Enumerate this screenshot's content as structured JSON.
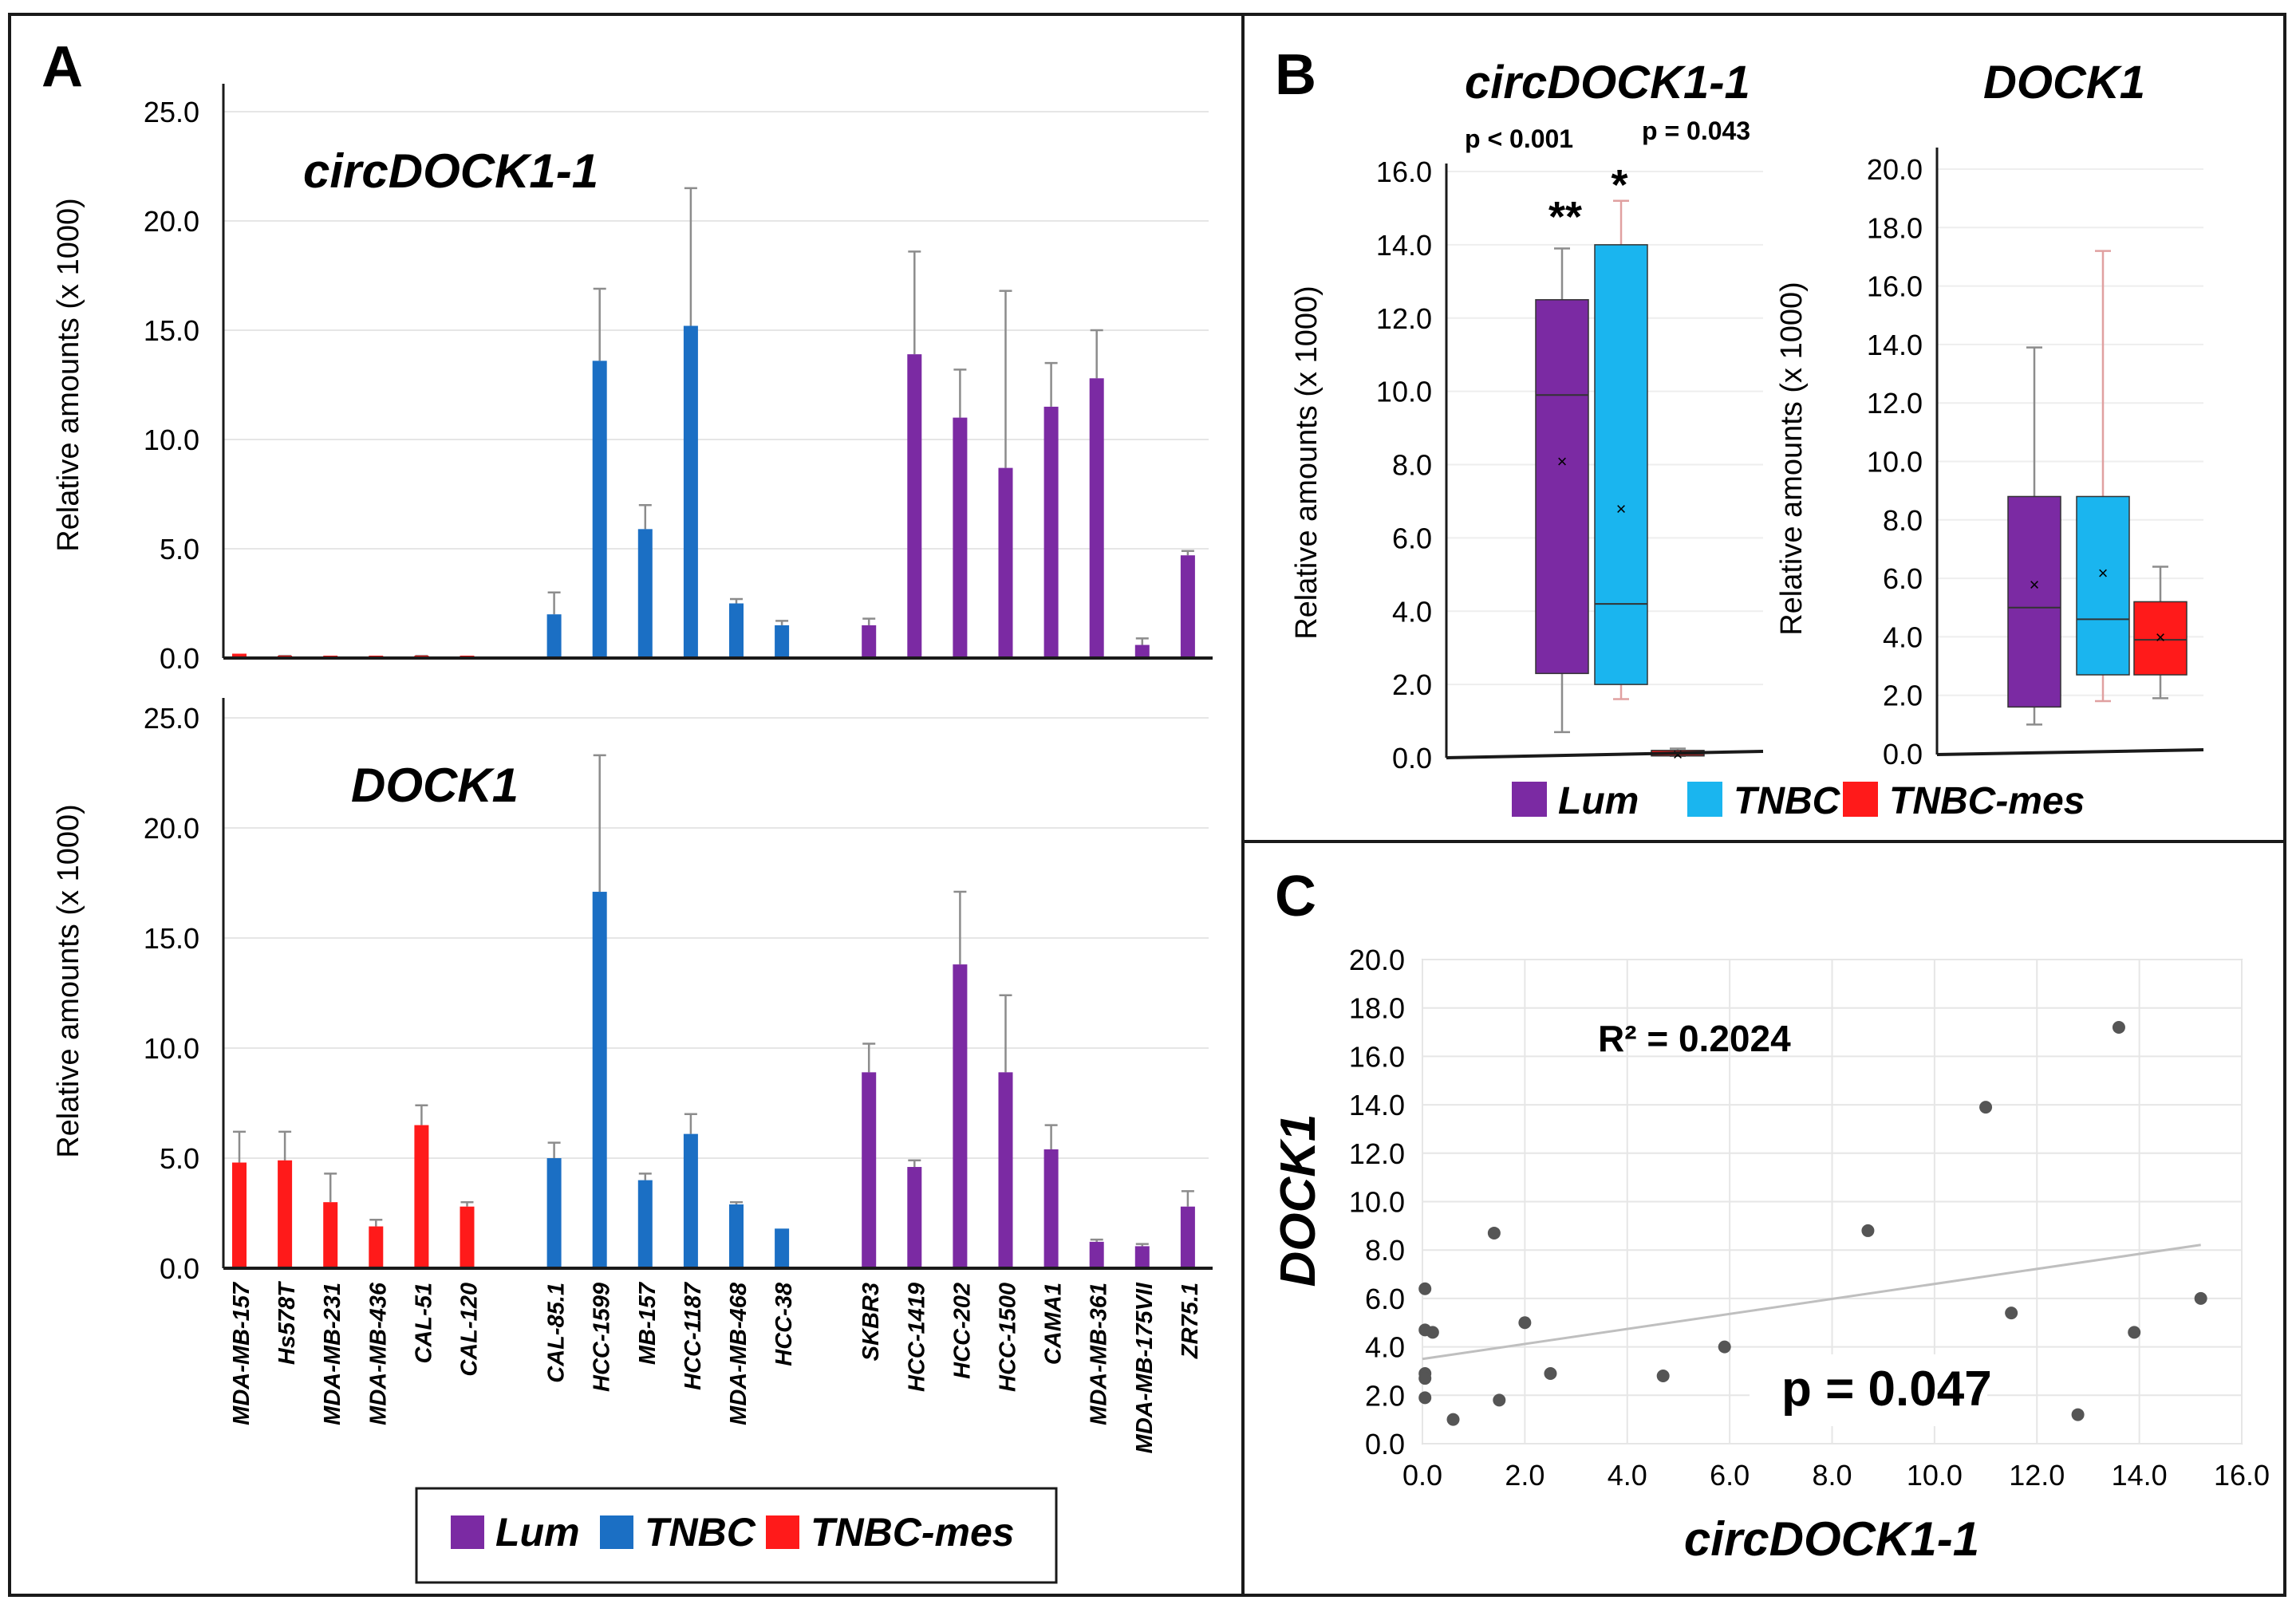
{
  "panel_labels": {
    "a": "A",
    "b": "B",
    "c": "C"
  },
  "colors": {
    "lum": "#7b2aa3",
    "tnbc_a": "#1b6fc4",
    "tnbc_b": "#1ab5ef",
    "mes": "#ff1a1a",
    "err": "#8c8c8c",
    "grid": "#e6e6e6",
    "axis": "#1a1a1a"
  },
  "chart_data": [
    {
      "id": "A_top",
      "type": "bar",
      "title": "circDOCK1-1",
      "ylabel": "Relative amounts (x 1000)",
      "ylim": [
        0,
        25
      ],
      "yticks": [
        "0.0",
        "5.0",
        "10.0",
        "15.0",
        "20.0",
        "25.0"
      ],
      "categories": [
        "MDA-MB-157",
        "Hs578T",
        "MDA-MB-231",
        "MDA-MB-436",
        "CAL-51",
        "CAL-120",
        "CAL-85.1",
        "HCC-1599",
        "MB-157",
        "HCC-1187",
        "MDA-MB-468",
        "HCC-38",
        "SKBR3",
        "HCC-1419",
        "HCC-202",
        "HCC-1500",
        "CAMA1",
        "MDA-MB-361",
        "MDA-MB-175VII",
        "ZR75.1"
      ],
      "groups": [
        "mes",
        "mes",
        "mes",
        "mes",
        "mes",
        "mes",
        "tnbc",
        "tnbc",
        "tnbc",
        "tnbc",
        "tnbc",
        "tnbc",
        "lum",
        "lum",
        "lum",
        "lum",
        "lum",
        "lum",
        "lum",
        "lum"
      ],
      "values": [
        0.2,
        0.05,
        0.05,
        0.05,
        0.05,
        0.05,
        2.0,
        13.6,
        5.9,
        15.2,
        2.5,
        1.5,
        1.5,
        13.9,
        11.0,
        8.7,
        11.5,
        12.8,
        0.6,
        4.7
      ],
      "errors": [
        0.0,
        0.05,
        0.0,
        0.0,
        0.05,
        0.0,
        1.0,
        3.3,
        1.1,
        6.3,
        0.2,
        0.2,
        0.3,
        4.7,
        2.2,
        8.1,
        2.0,
        2.2,
        0.3,
        0.2
      ]
    },
    {
      "id": "A_bottom",
      "type": "bar",
      "title": "DOCK1",
      "ylabel": "Relative amounts (x 1000)",
      "ylim": [
        0,
        25
      ],
      "yticks": [
        "0.0",
        "5.0",
        "10.0",
        "15.0",
        "20.0",
        "25.0"
      ],
      "categories": [
        "MDA-MB-157",
        "Hs578T",
        "MDA-MB-231",
        "MDA-MB-436",
        "CAL-51",
        "CAL-120",
        "CAL-85.1",
        "HCC-1599",
        "MB-157",
        "HCC-1187",
        "MDA-MB-468",
        "HCC-38",
        "SKBR3",
        "HCC-1419",
        "HCC-202",
        "HCC-1500",
        "CAMA1",
        "MDA-MB-361",
        "MDA-MB-175VII",
        "ZR75.1"
      ],
      "groups": [
        "mes",
        "mes",
        "mes",
        "mes",
        "mes",
        "mes",
        "tnbc",
        "tnbc",
        "tnbc",
        "tnbc",
        "tnbc",
        "tnbc",
        "lum",
        "lum",
        "lum",
        "lum",
        "lum",
        "lum",
        "lum",
        "lum"
      ],
      "values": [
        4.8,
        4.9,
        3.0,
        1.9,
        6.5,
        2.8,
        5.0,
        17.1,
        4.0,
        6.1,
        2.9,
        1.8,
        8.9,
        4.6,
        13.8,
        8.9,
        5.4,
        1.2,
        1.0,
        2.8
      ],
      "errors": [
        1.4,
        1.3,
        1.3,
        0.3,
        0.9,
        0.2,
        0.7,
        6.2,
        0.3,
        0.9,
        0.1,
        0.0,
        1.3,
        0.3,
        3.3,
        3.5,
        1.1,
        0.1,
        0.1,
        0.7
      ]
    },
    {
      "id": "B_circ",
      "type": "box",
      "title": "circDOCK1-1",
      "ylabel": "Relative amounts (x 1000)",
      "ylim": [
        0,
        16
      ],
      "yticks": [
        "0.0",
        "2.0",
        "4.0",
        "6.0",
        "8.0",
        "10.0",
        "12.0",
        "14.0",
        "16.0"
      ],
      "pvalues": [
        "p < 0.001",
        "p = 0.043"
      ],
      "stars": [
        "**",
        "*"
      ],
      "boxes": [
        {
          "group": "lum",
          "min": 0.7,
          "q1": 2.3,
          "median": 9.9,
          "q3": 12.5,
          "max": 13.9,
          "mean": 8.1
        },
        {
          "group": "tnbc",
          "min": 1.6,
          "q1": 2.0,
          "median": 4.2,
          "q3": 14.0,
          "max": 15.2,
          "mean": 6.8
        },
        {
          "group": "mes",
          "min": 0.05,
          "q1": 0.05,
          "median": 0.1,
          "q3": 0.2,
          "max": 0.25,
          "mean": 0.1
        }
      ]
    },
    {
      "id": "B_dock",
      "type": "box",
      "title": "DOCK1",
      "ylabel": "Relative amounts (x 1000)",
      "ylim": [
        0,
        20
      ],
      "yticks": [
        "0.0",
        "2.0",
        "4.0",
        "6.0",
        "8.0",
        "10.0",
        "12.0",
        "14.0",
        "16.0",
        "18.0",
        "20.0"
      ],
      "boxes": [
        {
          "group": "lum",
          "min": 1.0,
          "q1": 1.6,
          "median": 5.0,
          "q3": 8.8,
          "max": 13.9,
          "mean": 5.8
        },
        {
          "group": "tnbc",
          "min": 1.8,
          "q1": 2.7,
          "median": 4.6,
          "q3": 8.8,
          "max": 17.2,
          "mean": 6.2
        },
        {
          "group": "mes",
          "min": 1.9,
          "q1": 2.7,
          "median": 3.9,
          "q3": 5.2,
          "max": 6.4,
          "mean": 4.0
        }
      ]
    },
    {
      "id": "C",
      "type": "scatter",
      "xlabel": "circDOCK1-1",
      "ylabel": "DOCK1",
      "xlim": [
        0,
        16
      ],
      "ylim": [
        0,
        20
      ],
      "xticks": [
        "0.0",
        "2.0",
        "4.0",
        "6.0",
        "8.0",
        "10.0",
        "12.0",
        "14.0",
        "16.0"
      ],
      "yticks": [
        "0.0",
        "2.0",
        "4.0",
        "6.0",
        "8.0",
        "10.0",
        "12.0",
        "14.0",
        "16.0",
        "18.0",
        "20.0"
      ],
      "r2": "R² = 0.2024",
      "pvalue": "p = 0.047",
      "trendline": {
        "slope": 0.31,
        "intercept": 3.5
      },
      "points": [
        [
          0.05,
          6.4
        ],
        [
          0.05,
          4.7
        ],
        [
          0.2,
          4.6
        ],
        [
          0.05,
          2.9
        ],
        [
          0.05,
          2.7
        ],
        [
          0.05,
          1.9
        ],
        [
          1.4,
          8.7
        ],
        [
          1.5,
          1.8
        ],
        [
          2.0,
          5.0
        ],
        [
          0.6,
          1.0
        ],
        [
          2.5,
          2.9
        ],
        [
          4.7,
          2.8
        ],
        [
          5.9,
          4.0
        ],
        [
          8.7,
          8.8
        ],
        [
          11.0,
          13.9
        ],
        [
          11.5,
          5.4
        ],
        [
          12.8,
          1.2
        ],
        [
          13.6,
          17.2
        ],
        [
          13.9,
          4.6
        ],
        [
          15.2,
          6.0
        ]
      ]
    }
  ],
  "legend_a": [
    {
      "group": "lum",
      "label": "Lum"
    },
    {
      "group": "tnbc",
      "label": "TNBC"
    },
    {
      "group": "mes",
      "label": "TNBC-mes"
    }
  ],
  "legend_b": [
    {
      "group": "lum",
      "label": "Lum"
    },
    {
      "group": "tnbc",
      "label": "TNBC"
    },
    {
      "group": "mes",
      "label": "TNBC-mes"
    }
  ]
}
